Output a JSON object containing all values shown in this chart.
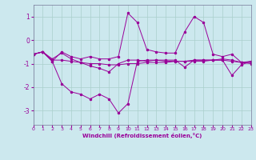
{
  "xlabel": "Windchill (Refroidissement éolien,°C)",
  "background_color": "#cce8ee",
  "grid_color": "#aacfcc",
  "line_color": "#990099",
  "xlim": [
    0,
    23
  ],
  "ylim": [
    -3.6,
    1.5
  ],
  "yticks": [
    -3,
    -2,
    -1,
    0,
    1
  ],
  "xticks": [
    0,
    1,
    2,
    3,
    4,
    5,
    6,
    7,
    8,
    9,
    10,
    11,
    12,
    13,
    14,
    15,
    16,
    17,
    18,
    19,
    20,
    21,
    22,
    23
  ],
  "series1_x": [
    0,
    1,
    2,
    3,
    4,
    5,
    6,
    7,
    8,
    9,
    10,
    11,
    12,
    13,
    14,
    15,
    16,
    17,
    18,
    19,
    20,
    21,
    22,
    23
  ],
  "series1_y": [
    -0.6,
    -0.5,
    -0.85,
    -0.85,
    -0.9,
    -0.95,
    -1.0,
    -1.0,
    -1.05,
    -1.05,
    -1.0,
    -1.0,
    -0.95,
    -0.95,
    -0.95,
    -0.9,
    -0.9,
    -0.85,
    -0.85,
    -0.85,
    -0.85,
    -0.9,
    -0.95,
    -1.0
  ],
  "series2_x": [
    0,
    1,
    2,
    3,
    4,
    5,
    6,
    7,
    8,
    9,
    10,
    11,
    12,
    13,
    14,
    15,
    16,
    17,
    18,
    19,
    20,
    21,
    22,
    23
  ],
  "series2_y": [
    -0.6,
    -0.5,
    -0.9,
    -1.85,
    -2.2,
    -2.3,
    -2.5,
    -2.3,
    -2.5,
    -3.1,
    -2.7,
    -0.9,
    -0.85,
    -0.85,
    -0.85,
    -0.85,
    -1.15,
    -0.85,
    -0.85,
    -0.85,
    -0.85,
    -1.5,
    -1.05,
    -0.9
  ],
  "series3_x": [
    0,
    1,
    2,
    3,
    4,
    5,
    6,
    7,
    8,
    9,
    10,
    11,
    12,
    13,
    14,
    15,
    16,
    17,
    18,
    19,
    20,
    21,
    22,
    23
  ],
  "series3_y": [
    -0.6,
    -0.5,
    -0.9,
    -0.5,
    -0.7,
    -0.8,
    -0.7,
    -0.8,
    -0.8,
    -0.7,
    1.15,
    0.75,
    -0.4,
    -0.5,
    -0.55,
    -0.55,
    0.35,
    1.0,
    0.75,
    -0.6,
    -0.7,
    -0.6,
    -0.95,
    -0.9
  ],
  "series4_x": [
    0,
    1,
    2,
    3,
    4,
    5,
    6,
    7,
    8,
    9,
    10,
    11,
    12,
    13,
    14,
    15,
    16,
    17,
    18,
    19,
    20,
    21,
    22,
    23
  ],
  "series4_y": [
    -0.6,
    -0.5,
    -0.8,
    -0.55,
    -0.8,
    -0.95,
    -1.1,
    -1.2,
    -1.35,
    -1.0,
    -0.85,
    -0.85,
    -0.9,
    -0.85,
    -0.9,
    -0.9,
    -0.9,
    -0.9,
    -0.9,
    -0.85,
    -0.8,
    -0.85,
    -0.95,
    -0.95
  ]
}
